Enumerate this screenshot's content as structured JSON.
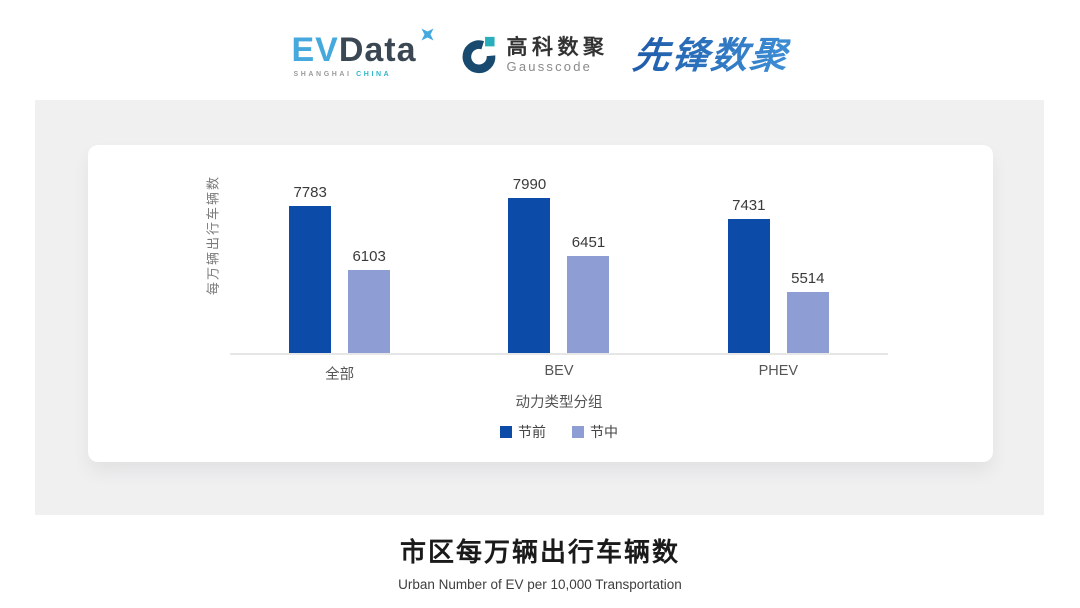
{
  "header": {
    "logos": {
      "evdata": {
        "ev": "EV",
        "data": "Data",
        "sub_left": "SHANGHAI",
        "sub_right": "CHINA",
        "ev_color": "#45A9DD",
        "data_color": "#3B4753",
        "sub_left_color": "#9B9B9B",
        "sub_right_color": "#2CB7C8"
      },
      "gausscode": {
        "cn": "高科数聚",
        "en": "Gausscode",
        "cn_color": "#333333",
        "en_color": "#8A8A8A",
        "icon_dark": "#174A6E",
        "icon_teal": "#29AFBC"
      },
      "xianfeng": {
        "text": "先锋数聚",
        "color_from": "#1E5AA8",
        "color_to": "#3E8FD6"
      }
    }
  },
  "chart_data": {
    "type": "bar",
    "categories": [
      "全部",
      "BEV",
      "PHEV"
    ],
    "series": [
      {
        "name": "节前",
        "color": "#0D4BA9",
        "values": [
          7783,
          7990,
          7431
        ]
      },
      {
        "name": "节中",
        "color": "#8F9DD5",
        "values": [
          6103,
          6451,
          5514
        ]
      }
    ],
    "title": "市区每万辆出行车辆数",
    "subtitle": "Urban Number of EV per 10,000 Transportation",
    "xlabel": "动力类型分组",
    "ylabel": "每万辆出行车辆数",
    "ylim": [
      3928,
      9000
    ],
    "grid": false,
    "legend_position": "bottom",
    "value_labels": true,
    "axis_line_color": "#E6E6E6"
  },
  "footer": {
    "title": "市区每万辆出行车辆数",
    "subtitle": "Urban Number of EV per 10,000 Transportation"
  }
}
